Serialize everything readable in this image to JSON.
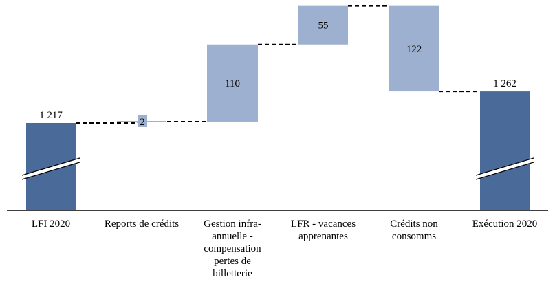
{
  "chart_data": {
    "type": "waterfall",
    "categories": [
      "LFI 2020",
      "Reports de crédits",
      "Gestion infra-annuelle - compensation pertes de billetterie",
      "LFR - vacances apprenantes",
      "Crédits non consomms",
      "Exécution 2020"
    ],
    "category_lines": [
      [
        "LFI 2020"
      ],
      [
        "Reports de crédits"
      ],
      [
        "Gestion infra-",
        "annuelle -",
        "compensation",
        "pertes de",
        "billetterie"
      ],
      [
        "LFR - vacances",
        "apprenantes"
      ],
      [
        "Crédits non",
        "consomms"
      ],
      [
        "Exécution 2020"
      ]
    ],
    "values": [
      1217,
      2,
      110,
      55,
      -122,
      1262
    ],
    "value_labels": [
      "1 217",
      "2",
      "110",
      "55",
      "122",
      "1 262"
    ],
    "kinds": [
      "total",
      "delta",
      "delta",
      "delta",
      "delta",
      "total"
    ],
    "axis_break": true,
    "colors": {
      "total": "#4a6a99",
      "delta": "#9eb0cf",
      "connector": "#000000",
      "axis": "#000000"
    }
  }
}
